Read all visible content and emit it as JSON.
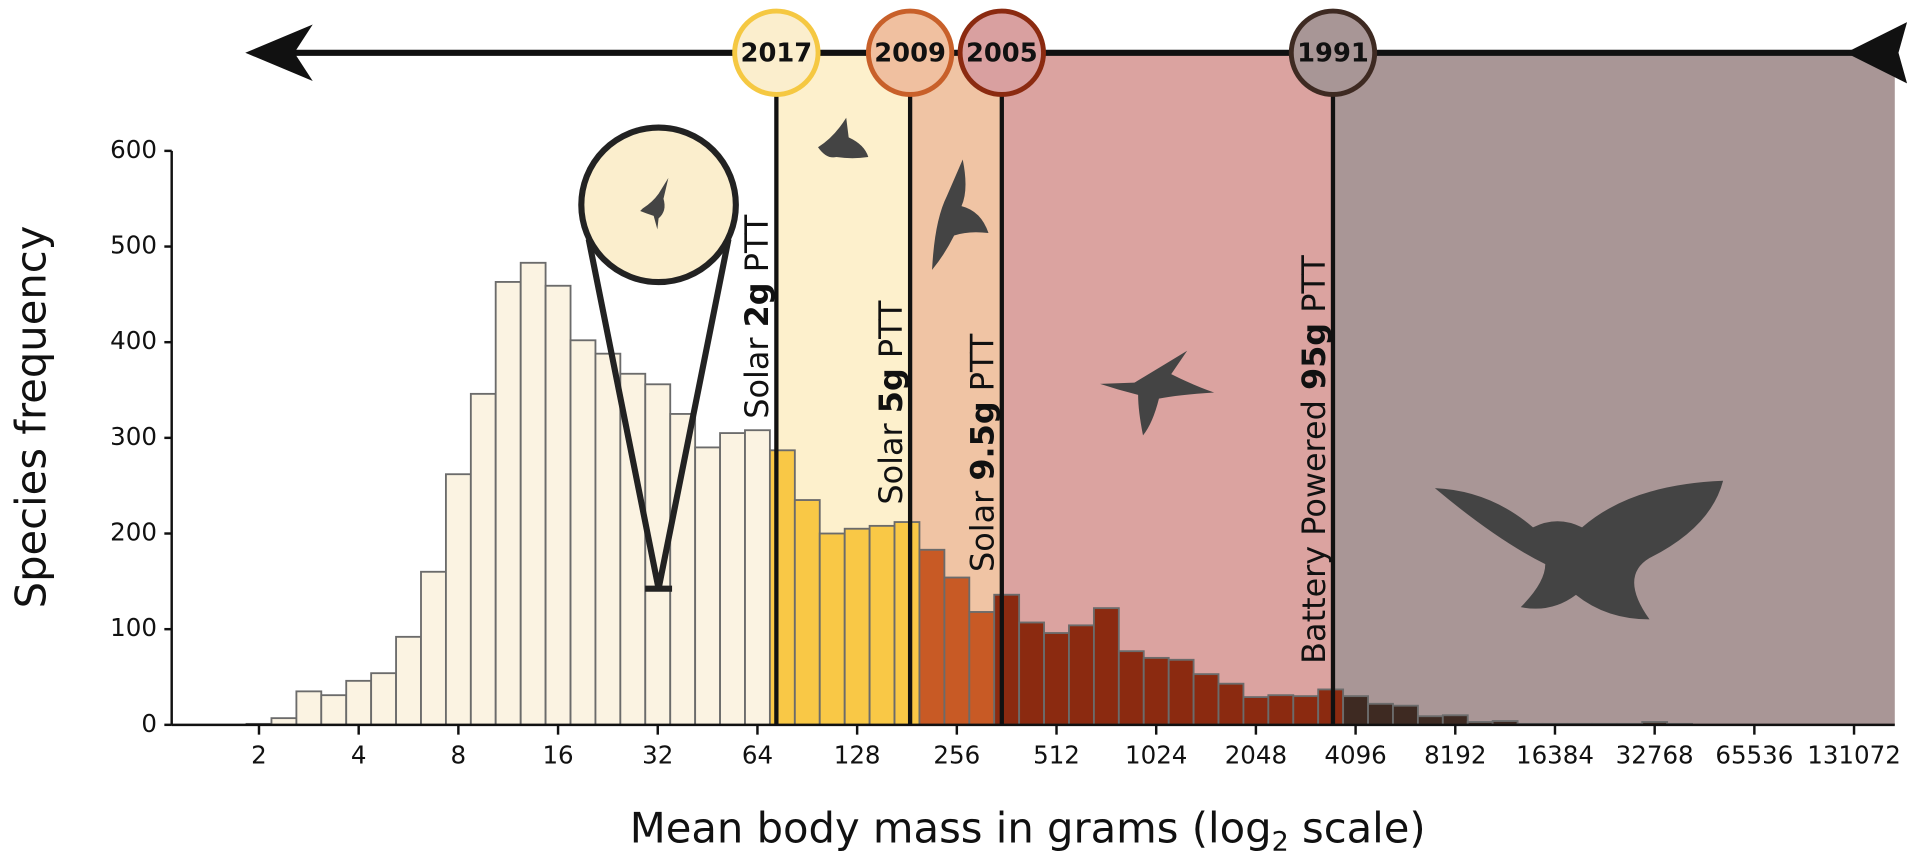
{
  "chart_data": {
    "type": "histogram",
    "xscale": "log2",
    "ylabel": "Species frequency",
    "xlabel": {
      "main": "Mean body mass in grams (log",
      "sub": "2",
      "end": " scale)"
    },
    "xlim": [
      1.09,
      174000
    ],
    "xticks": [
      2,
      4,
      8,
      16,
      32,
      64,
      128,
      256,
      512,
      1024,
      2048,
      4096,
      8192,
      16384,
      32768,
      65536,
      131072
    ],
    "ylim": [
      0,
      600
    ],
    "yticks": [
      0,
      100,
      200,
      300,
      400,
      500,
      600
    ],
    "bins": [
      1.834,
      2.181,
      2.594,
      3.084,
      3.668,
      4.362,
      5.187,
      6.169,
      7.336,
      8.724,
      10.37,
      12.34,
      14.67,
      17.45,
      20.75,
      24.67,
      29.34,
      34.9,
      41.5,
      49.35,
      58.69,
      69.79,
      83,
      98.7,
      117.4,
      139.6,
      166,
      197.4,
      234.8,
      279.2,
      332,
      394.8,
      469.5,
      558.3,
      664,
      789.6,
      939,
      1117,
      1328,
      1579,
      1878,
      2233,
      2656,
      3158,
      3756,
      4467,
      5312,
      6317,
      7512,
      8933,
      10623,
      12634,
      15024,
      17867,
      21247,
      25267,
      30048,
      35734,
      42495
    ],
    "values": [
      1,
      7,
      35,
      31,
      46,
      54,
      92,
      160,
      262,
      346,
      463,
      483,
      459,
      402,
      388,
      367,
      356,
      325,
      290,
      305,
      308,
      287,
      235,
      200,
      205,
      208,
      212,
      183,
      154,
      118,
      136,
      107,
      96,
      104,
      122,
      77,
      70,
      68,
      53,
      43,
      29,
      31,
      30,
      37,
      30,
      22,
      20,
      9,
      10,
      3,
      4,
      1,
      1,
      1,
      1,
      1,
      3,
      1
    ],
    "color": "#fbf3e2",
    "milestones": [
      {
        "year": 2017,
        "mass": 73,
        "prefix": "Solar ",
        "bold": "2g",
        "suffix": " PTT",
        "ring": "#f5c842",
        "fill": "#fbeecd",
        "band": "#fdf0cc",
        "bar_color": "#f9c846"
      },
      {
        "year": 2009,
        "mass": 185,
        "prefix": "Solar ",
        "bold": "5g",
        "suffix": " PTT",
        "ring": "#c8602a",
        "fill": "#f0c0a0",
        "band": "#f0c4a4",
        "bar_color": "#c85a25"
      },
      {
        "year": 2005,
        "mass": 350,
        "prefix": "Solar ",
        "bold": "9.5g",
        "suffix": " PTT",
        "ring": "#8b2a10",
        "fill": "#d9a0a0",
        "band": "#dba3a0",
        "bar_color": "#8b2a10"
      },
      {
        "year": 1991,
        "mass": 3500,
        "prefix": "Battery Powered ",
        "bold": "95g",
        "suffix": " PTT",
        "ring": "#3e2a22",
        "fill": "#a89696",
        "band": "#a99696",
        "bar_color": "#3e2a22"
      }
    ]
  }
}
